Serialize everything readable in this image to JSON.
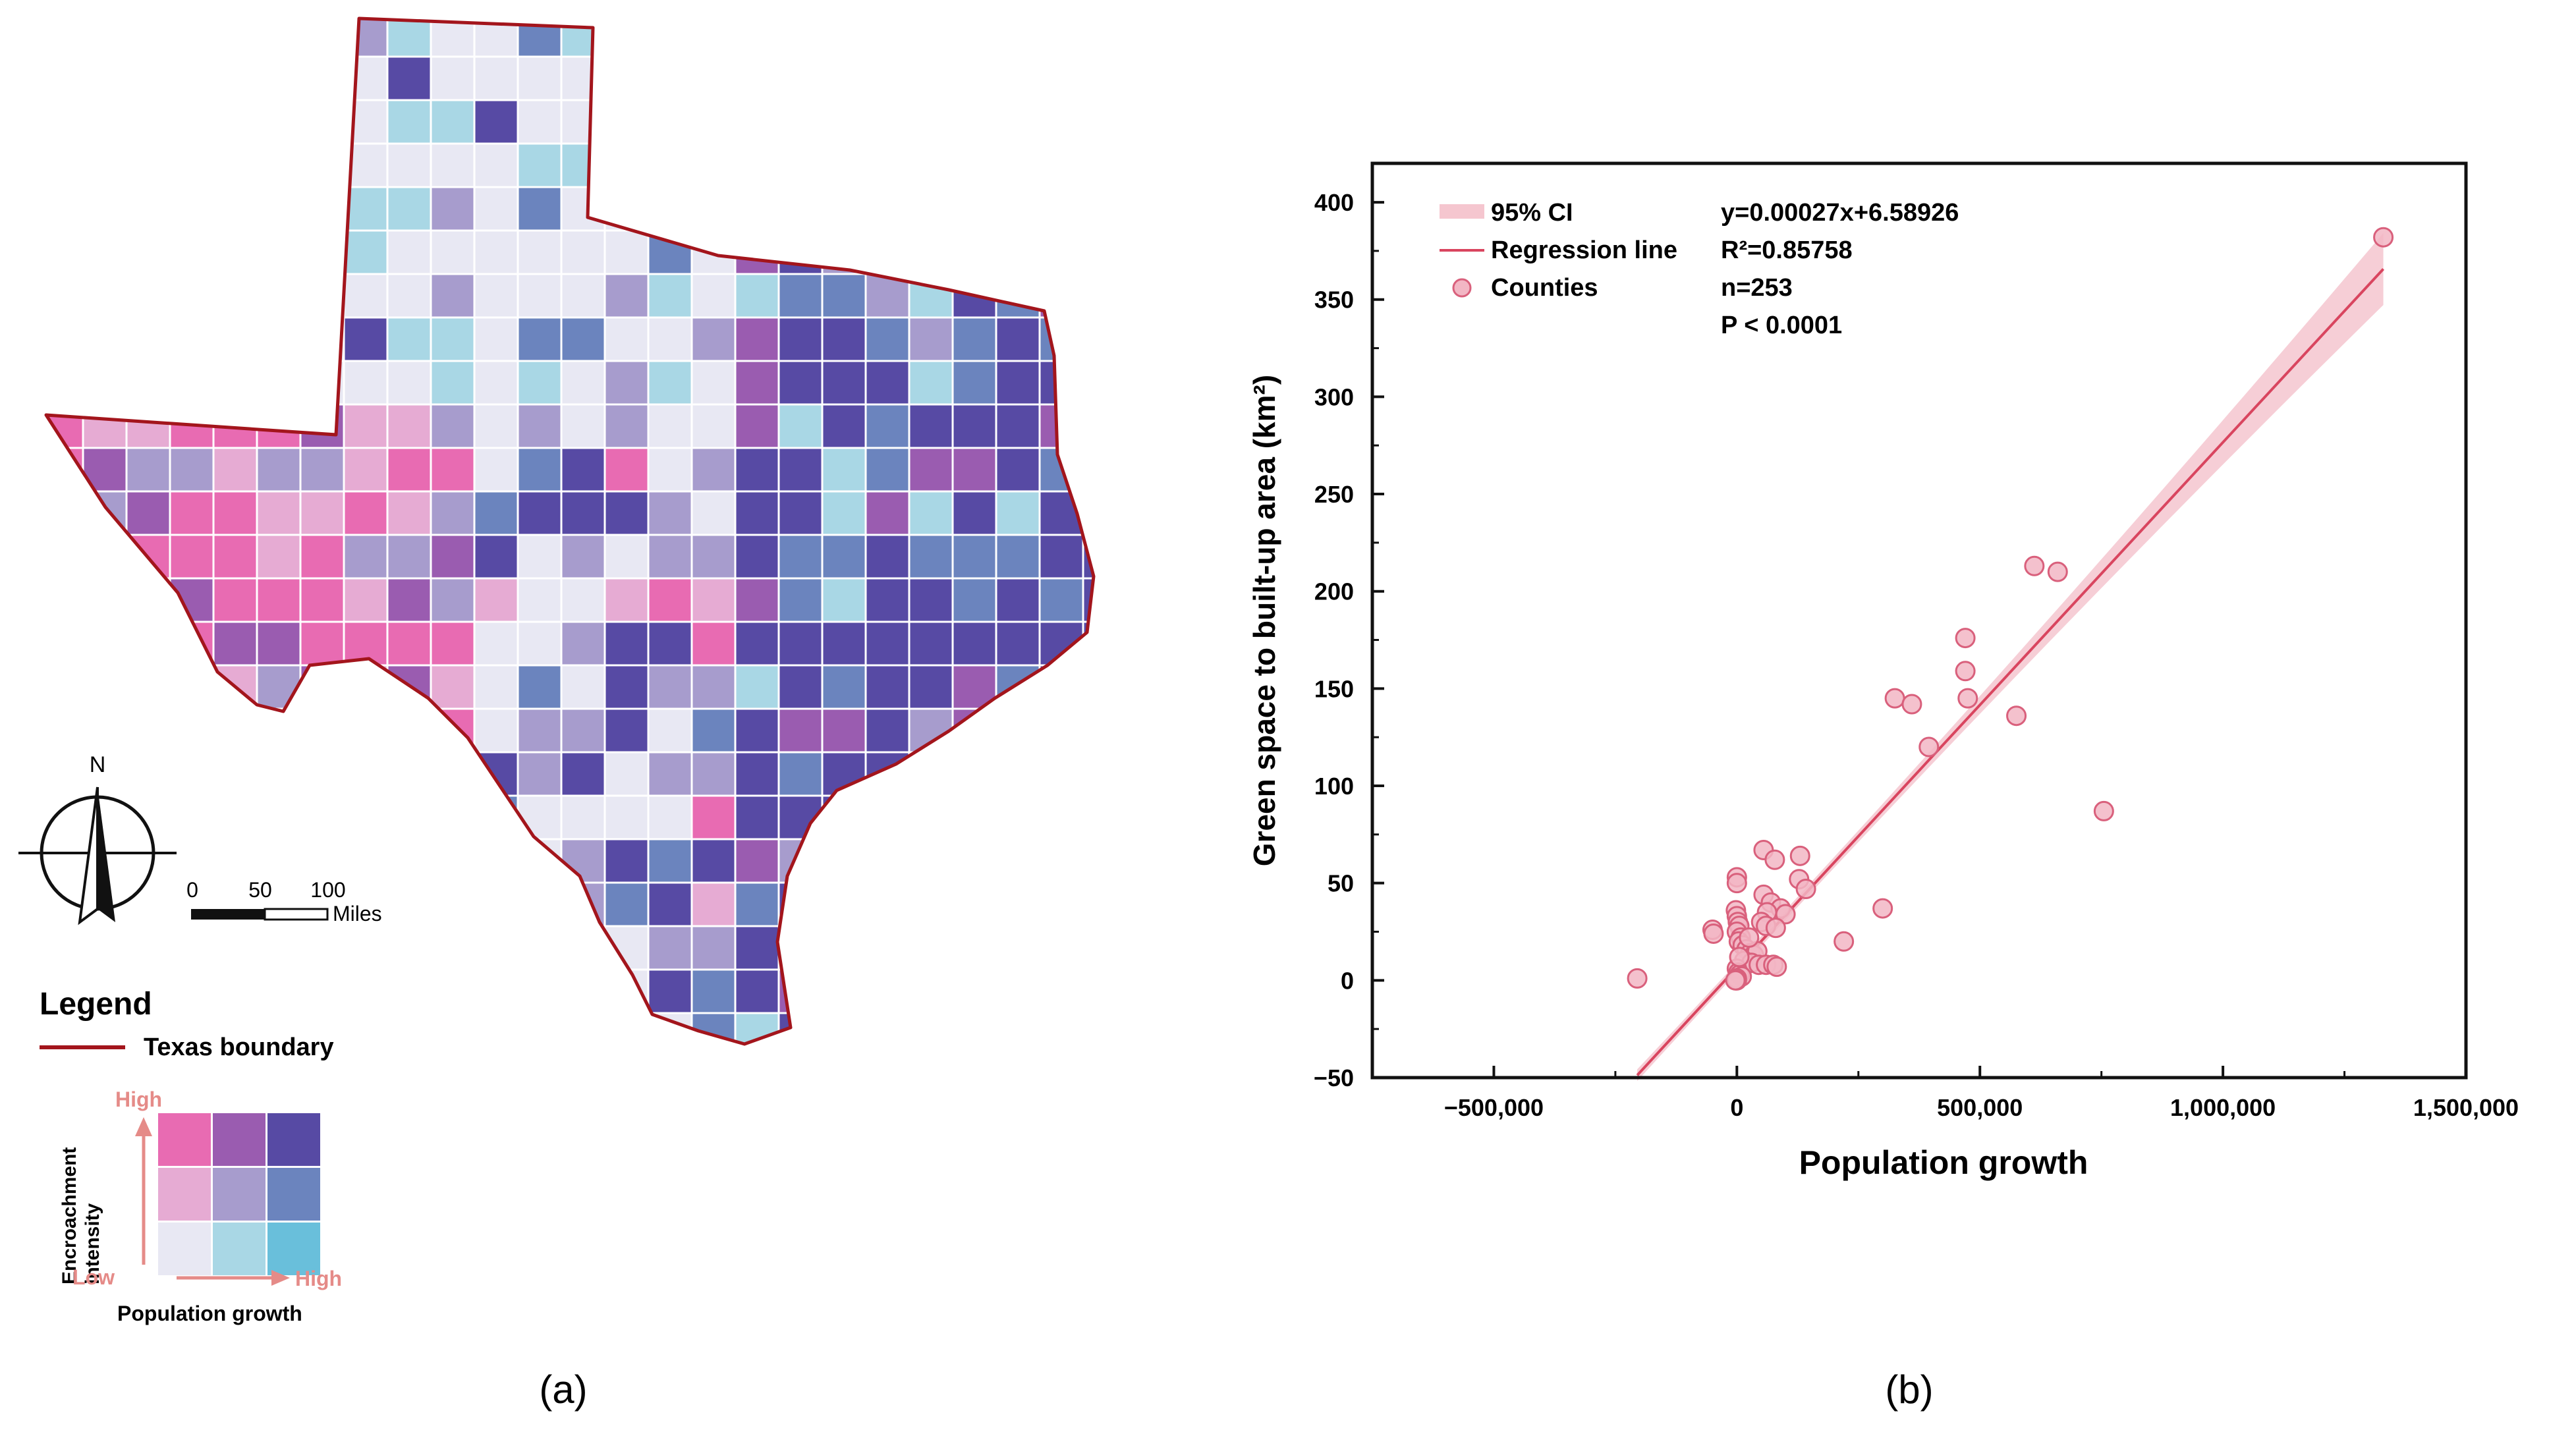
{
  "panel_a": {
    "caption": "(a)",
    "north_label": "N",
    "scale_bar": {
      "ticks": [
        "0",
        "50",
        "100"
      ],
      "unit": "Miles"
    },
    "legend": {
      "title": "Legend",
      "boundary_label": "Texas boundary",
      "y_label_line1": "Encroachment",
      "y_label_line2": "intensity",
      "high_label_y": "High",
      "low_label": "Low",
      "high_label_x": "High",
      "x_label": "Population growth"
    },
    "colors": {
      "boundary": "#a3151c",
      "bivariate_grid": [
        [
          "#e86bb2",
          "#9a5cb0",
          "#574aa4"
        ],
        [
          "#e6abd3",
          "#a79ccd",
          "#6b84be"
        ],
        [
          "#e8e8f3",
          "#a9d7e5",
          "#69bfdb"
        ]
      ],
      "axis_arrow": "#e58b88"
    }
  },
  "chart_data": {
    "type": "scatter",
    "caption": "(b)",
    "xlabel": "Population growth",
    "ylabel": "Green space to built-up area  (km²)",
    "xlim": [
      -750000,
      1500000
    ],
    "ylim": [
      -50,
      420
    ],
    "xticks": [
      -500000,
      0,
      500000,
      1000000,
      1500000
    ],
    "xtick_labels": [
      "−500,000",
      "0",
      "500,000",
      "1,000,000",
      "1,500,000"
    ],
    "yticks": [
      -50,
      0,
      50,
      100,
      150,
      200,
      250,
      300,
      350,
      400
    ],
    "ytick_labels": [
      "−50",
      "0",
      "50",
      "100",
      "150",
      "200",
      "250",
      "300",
      "350",
      "400"
    ],
    "legend": {
      "ci": "95% CI",
      "line": "Regression line",
      "points": "Counties"
    },
    "stats": {
      "equation": "y=0.00027x+6.58926",
      "r2": "R²=0.85758",
      "n": "n=253",
      "p": "P < 0.0001"
    },
    "regression": {
      "slope": 0.00027,
      "intercept": 6.58926,
      "x_range": [
        -205000,
        1330000
      ]
    },
    "colors": {
      "point_fill": "#f2b6c4",
      "point_edge": "#d9607c",
      "line": "#d9455f",
      "ci": "#f5c6cf"
    },
    "series": [
      {
        "name": "Counties",
        "points": [
          [
            1330000,
            382
          ],
          [
            612000,
            213
          ],
          [
            660000,
            210
          ],
          [
            470000,
            176
          ],
          [
            470000,
            159
          ],
          [
            475000,
            145
          ],
          [
            575000,
            136
          ],
          [
            325000,
            145
          ],
          [
            360000,
            142
          ],
          [
            395000,
            120
          ],
          [
            755000,
            87
          ],
          [
            -205000,
            1
          ],
          [
            55000,
            67
          ],
          [
            78000,
            62
          ],
          [
            130000,
            64
          ],
          [
            128000,
            52
          ],
          [
            142000,
            47
          ],
          [
            0,
            53
          ],
          [
            0,
            50
          ],
          [
            55000,
            44
          ],
          [
            70000,
            40
          ],
          [
            90000,
            37
          ],
          [
            62000,
            35
          ],
          [
            100000,
            34
          ],
          [
            300000,
            37
          ],
          [
            -50000,
            26
          ],
          [
            -48000,
            24
          ],
          [
            -2000,
            36
          ],
          [
            0,
            33
          ],
          [
            2000,
            30
          ],
          [
            5000,
            28
          ],
          [
            0,
            25
          ],
          [
            8000,
            22
          ],
          [
            4000,
            20
          ],
          [
            12000,
            18
          ],
          [
            20000,
            16
          ],
          [
            28000,
            14
          ],
          [
            35000,
            13
          ],
          [
            42000,
            15
          ],
          [
            50000,
            30
          ],
          [
            60000,
            28
          ],
          [
            80000,
            27
          ],
          [
            15000,
            10
          ],
          [
            30000,
            9
          ],
          [
            45000,
            8
          ],
          [
            60000,
            8
          ],
          [
            75000,
            8
          ],
          [
            82000,
            7
          ],
          [
            0,
            6
          ],
          [
            3000,
            4
          ],
          [
            6000,
            3
          ],
          [
            10000,
            2
          ],
          [
            0,
            1
          ],
          [
            0,
            0
          ],
          [
            -3000,
            0
          ],
          [
            5000,
            12
          ],
          [
            25000,
            22
          ],
          [
            220000,
            20
          ]
        ]
      }
    ]
  }
}
